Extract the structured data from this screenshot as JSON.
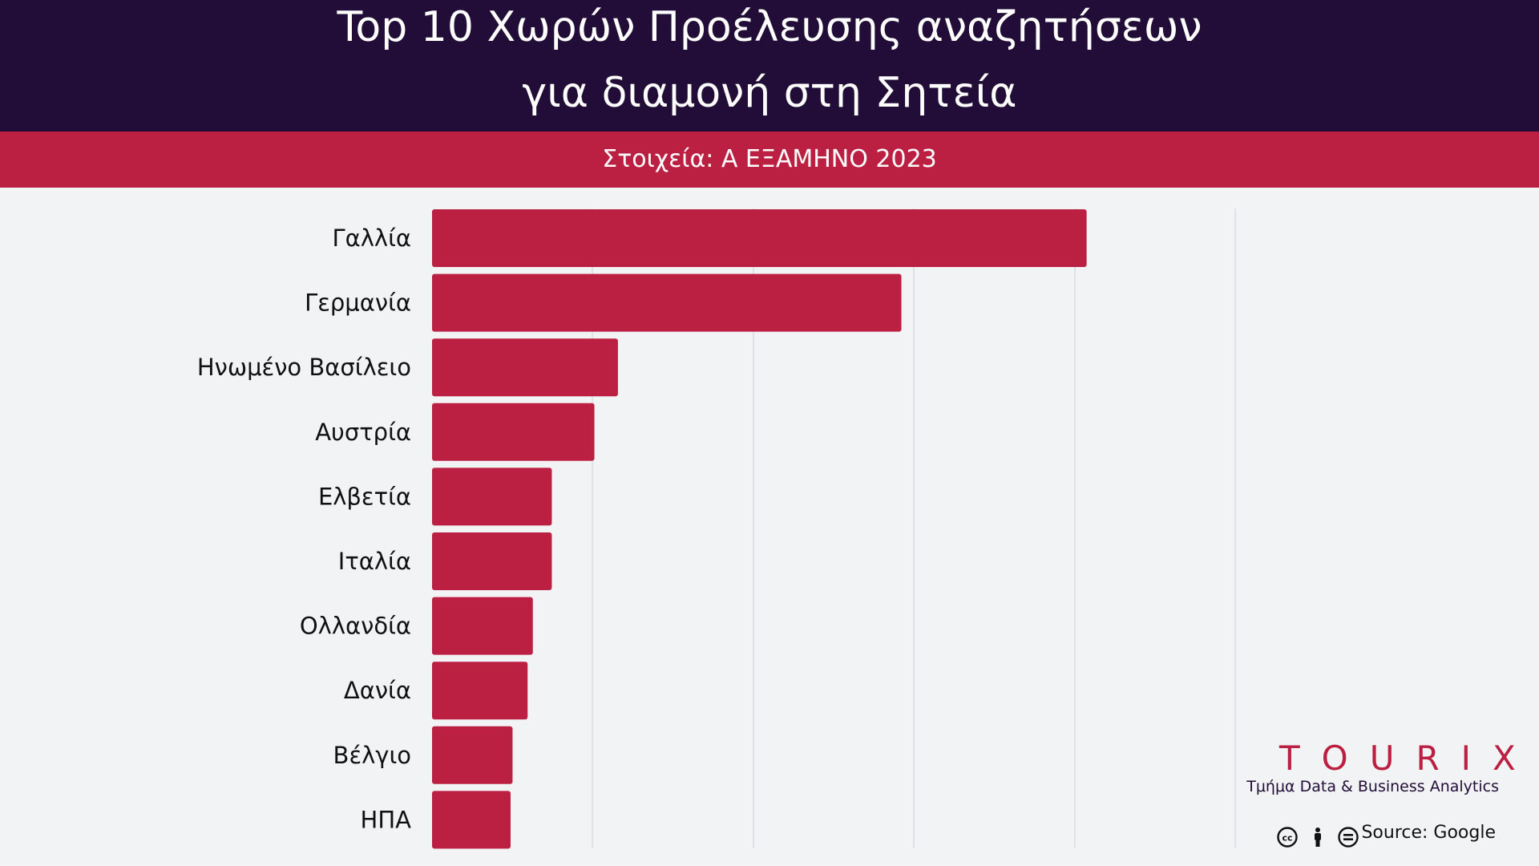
{
  "header": {
    "title_line1": "Top 10 Χωρών Προέλευσης αναζητήσεων",
    "title_line2": "για διαμονή στη Σητεία",
    "subtitle": "Στοιχεία: Α ΕΞΑΜΗΝΟ 2023"
  },
  "colors": {
    "header_bg": "#220d38",
    "accent": "#bb2042",
    "bar": "#bb2042",
    "background": "#f2f3f5",
    "grid": "#d5d6da"
  },
  "chart_data": {
    "type": "bar",
    "orientation": "horizontal",
    "title": "Top 10 Χωρών Προέλευσης αναζητήσεων για διαμονή στη Σητεία",
    "subtitle": "Στοιχεία: Α ΕΞΑΜΗΝΟ 2023",
    "categories": [
      "Γαλλία",
      "Γερμανία",
      "Ηνωμένο Βασίλειο",
      "Αυστρία",
      "Ελβετία",
      "Ιταλία",
      "Ολλανδία",
      "Δανία",
      "Βέλγιο",
      "ΗΠΑ"
    ],
    "values": [
      100,
      71.7,
      28.4,
      24.8,
      18.3,
      18.3,
      15.4,
      14.6,
      12.3,
      12.0
    ],
    "value_unit": "relative index (top = 100), no axis printed",
    "xlim": [
      0,
      122.7
    ],
    "gridlines": [
      0,
      24.5,
      49.1,
      73.6,
      98.2,
      122.7
    ],
    "grid": true,
    "show_tick_labels": false,
    "legend": "none"
  },
  "branding": {
    "logo_text": "TOURIX",
    "tagline": "Τμήμα Data & Business Analytics",
    "license_icons": [
      "creative-commons-icon",
      "attribution-person-icon",
      "no-derivatives-icon"
    ],
    "source": "Source: Google"
  }
}
